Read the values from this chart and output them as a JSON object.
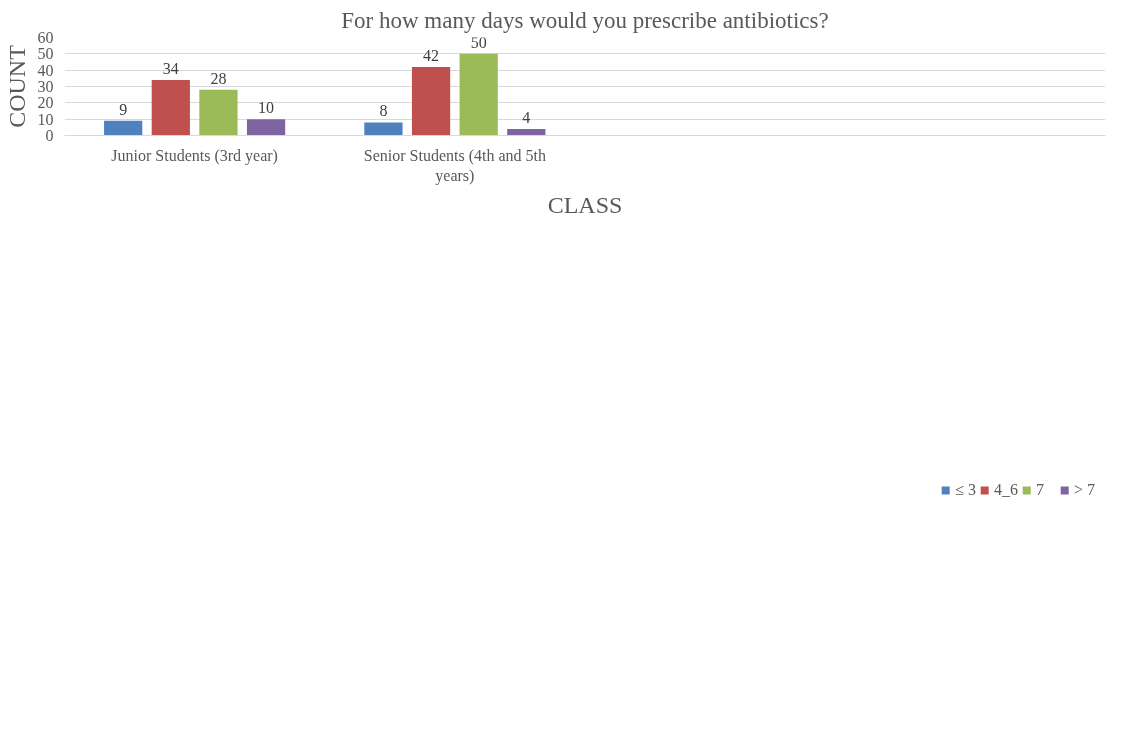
{
  "chart_data": {
    "type": "bar",
    "title": "For how many days would you prescribe antibiotics?",
    "xlabel": "CLASS",
    "ylabel": "COUNT",
    "categories": [
      "Junior Students (3rd year)",
      "Senior Students (4th and 5th years)",
      null,
      null
    ],
    "series": [
      {
        "name": "≤ 3",
        "color": "#4f81bd",
        "values": [
          9,
          8,
          null,
          null
        ]
      },
      {
        "name": "4_6",
        "color": "#c0504d",
        "values": [
          34,
          42,
          null,
          null
        ]
      },
      {
        "name": "7",
        "color": "#9bbb59",
        "values": [
          28,
          50,
          null,
          null
        ]
      },
      {
        "name": "> 7",
        "color": "#8064a2",
        "values": [
          10,
          4,
          null,
          null
        ]
      }
    ],
    "ylim": [
      0,
      60
    ],
    "yticks": [
      0,
      10,
      20,
      30,
      40,
      50,
      60
    ],
    "grid": "y",
    "legend": "bottom",
    "data_labels": true
  }
}
